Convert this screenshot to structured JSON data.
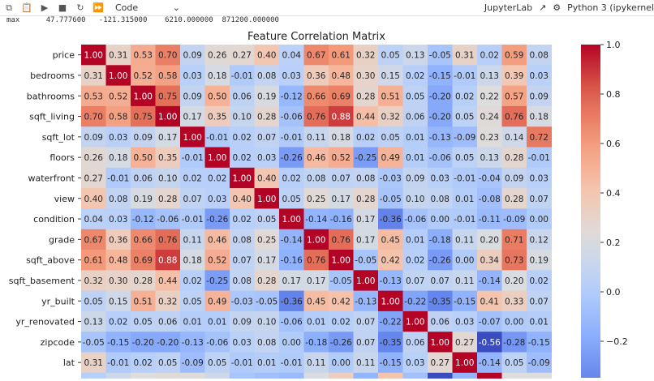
{
  "toolbar": {
    "icons": [
      "copy-icon",
      "paste-icon",
      "run-icon",
      "stop-icon",
      "restart-icon",
      "fast-forward-icon"
    ],
    "cell_type": "Code",
    "jupyterlab_label": "JupyterLab",
    "kernel_label": "Python 3 (ipykernel"
  },
  "output": {
    "line": "max      47.777600   -121.315000    6210.000000  871200.000000"
  },
  "chart_data": {
    "type": "heatmap",
    "title": "Feature Correlation Matrix",
    "colormap": "coolwarm",
    "vmin": -0.56,
    "vmax": 1.0,
    "colorbar_ticks": [
      "1.0",
      "0.8",
      "0.6",
      "0.4",
      "0.2",
      "0.0",
      "−0.2"
    ],
    "colorbar_tick_values": [
      1.0,
      0.8,
      0.6,
      0.4,
      0.2,
      0.0,
      -0.2
    ],
    "rows": [
      "price",
      "bedrooms",
      "bathrooms",
      "sqft_living",
      "sqft_lot",
      "floors",
      "waterfront",
      "view",
      "condition",
      "grade",
      "sqft_above",
      "sqft_basement",
      "yr_built",
      "yr_renovated",
      "zipcode",
      "lat"
    ],
    "values": [
      [
        1.0,
        0.31,
        0.53,
        0.7,
        0.09,
        0.26,
        0.27,
        0.4,
        0.04,
        0.67,
        0.61,
        0.32,
        0.05,
        0.13,
        -0.05,
        0.31,
        0.02,
        0.59,
        0.08
      ],
      [
        0.31,
        1.0,
        0.52,
        0.58,
        0.03,
        0.18,
        -0.01,
        0.08,
        0.03,
        0.36,
        0.48,
        0.3,
        0.15,
        0.02,
        -0.15,
        -0.01,
        0.13,
        0.39,
        0.03
      ],
      [
        0.53,
        0.52,
        1.0,
        0.75,
        0.09,
        0.5,
        0.06,
        0.19,
        -0.12,
        0.66,
        0.69,
        0.28,
        0.51,
        0.05,
        -0.2,
        0.02,
        0.22,
        0.57,
        0.09
      ],
      [
        0.7,
        0.58,
        0.75,
        1.0,
        0.17,
        0.35,
        0.1,
        0.28,
        -0.06,
        0.76,
        0.88,
        0.44,
        0.32,
        0.06,
        -0.2,
        0.05,
        0.24,
        0.76,
        0.18
      ],
      [
        0.09,
        0.03,
        0.09,
        0.17,
        1.0,
        -0.01,
        0.02,
        0.07,
        -0.01,
        0.11,
        0.18,
        0.02,
        0.05,
        0.01,
        -0.13,
        -0.09,
        0.23,
        0.14,
        0.72
      ],
      [
        0.26,
        0.18,
        0.5,
        0.35,
        -0.01,
        1.0,
        0.02,
        0.03,
        -0.26,
        0.46,
        0.52,
        -0.25,
        0.49,
        0.01,
        -0.06,
        0.05,
        0.13,
        0.28,
        -0.01
      ],
      [
        0.27,
        -0.01,
        0.06,
        0.1,
        0.02,
        0.02,
        1.0,
        0.4,
        0.02,
        0.08,
        0.07,
        0.08,
        -0.03,
        0.09,
        0.03,
        -0.01,
        -0.04,
        0.09,
        0.03
      ],
      [
        0.4,
        0.08,
        0.19,
        0.28,
        0.07,
        0.03,
        0.4,
        1.0,
        0.05,
        0.25,
        0.17,
        0.28,
        -0.05,
        0.1,
        0.08,
        0.01,
        -0.08,
        0.28,
        0.07
      ],
      [
        0.04,
        0.03,
        -0.12,
        -0.06,
        -0.01,
        -0.26,
        0.02,
        0.05,
        1.0,
        -0.14,
        -0.16,
        0.17,
        -0.36,
        -0.06,
        0.0,
        -0.01,
        -0.11,
        -0.09,
        -0.0
      ],
      [
        0.67,
        0.36,
        0.66,
        0.76,
        0.11,
        0.46,
        0.08,
        0.25,
        -0.14,
        1.0,
        0.76,
        0.17,
        0.45,
        0.01,
        -0.18,
        0.11,
        0.2,
        0.71,
        0.12
      ],
      [
        0.61,
        0.48,
        0.69,
        0.88,
        0.18,
        0.52,
        0.07,
        0.17,
        -0.16,
        0.76,
        1.0,
        -0.05,
        0.42,
        0.02,
        -0.26,
        -0.0,
        0.34,
        0.73,
        0.19
      ],
      [
        0.32,
        0.3,
        0.28,
        0.44,
        0.02,
        -0.25,
        0.08,
        0.28,
        0.17,
        0.17,
        -0.05,
        1.0,
        -0.13,
        0.07,
        0.07,
        0.11,
        -0.14,
        0.2,
        0.02
      ],
      [
        0.05,
        0.15,
        0.51,
        0.32,
        0.05,
        0.49,
        -0.03,
        -0.05,
        -0.36,
        0.45,
        0.42,
        -0.13,
        1.0,
        -0.22,
        -0.35,
        -0.15,
        0.41,
        0.33,
        0.07
      ],
      [
        0.13,
        0.02,
        0.05,
        0.06,
        0.01,
        0.01,
        0.09,
        0.1,
        -0.06,
        0.01,
        0.02,
        0.07,
        -0.22,
        1.0,
        0.06,
        0.03,
        -0.07,
        -0.0,
        0.01
      ],
      [
        -0.05,
        -0.15,
        -0.2,
        -0.2,
        -0.13,
        -0.06,
        0.03,
        0.08,
        0.0,
        -0.18,
        -0.26,
        0.07,
        -0.35,
        0.06,
        1.0,
        0.27,
        -0.56,
        -0.28,
        -0.15
      ],
      [
        0.31,
        -0.01,
        0.02,
        0.05,
        -0.09,
        0.05,
        -0.01,
        0.01,
        -0.01,
        0.11,
        -0.0,
        0.11,
        -0.15,
        0.03,
        0.27,
        1.0,
        -0.14,
        0.05,
        -0.09
      ]
    ],
    "partial_row_values": [
      0.02,
      0.13,
      0.22,
      0.24,
      0.23,
      0.13,
      -0.04,
      -0.08,
      -0.11,
      0.2,
      0.34,
      -0.14,
      0.41,
      -0.07,
      -0.56,
      -0.14,
      1.0,
      null,
      null
    ]
  }
}
